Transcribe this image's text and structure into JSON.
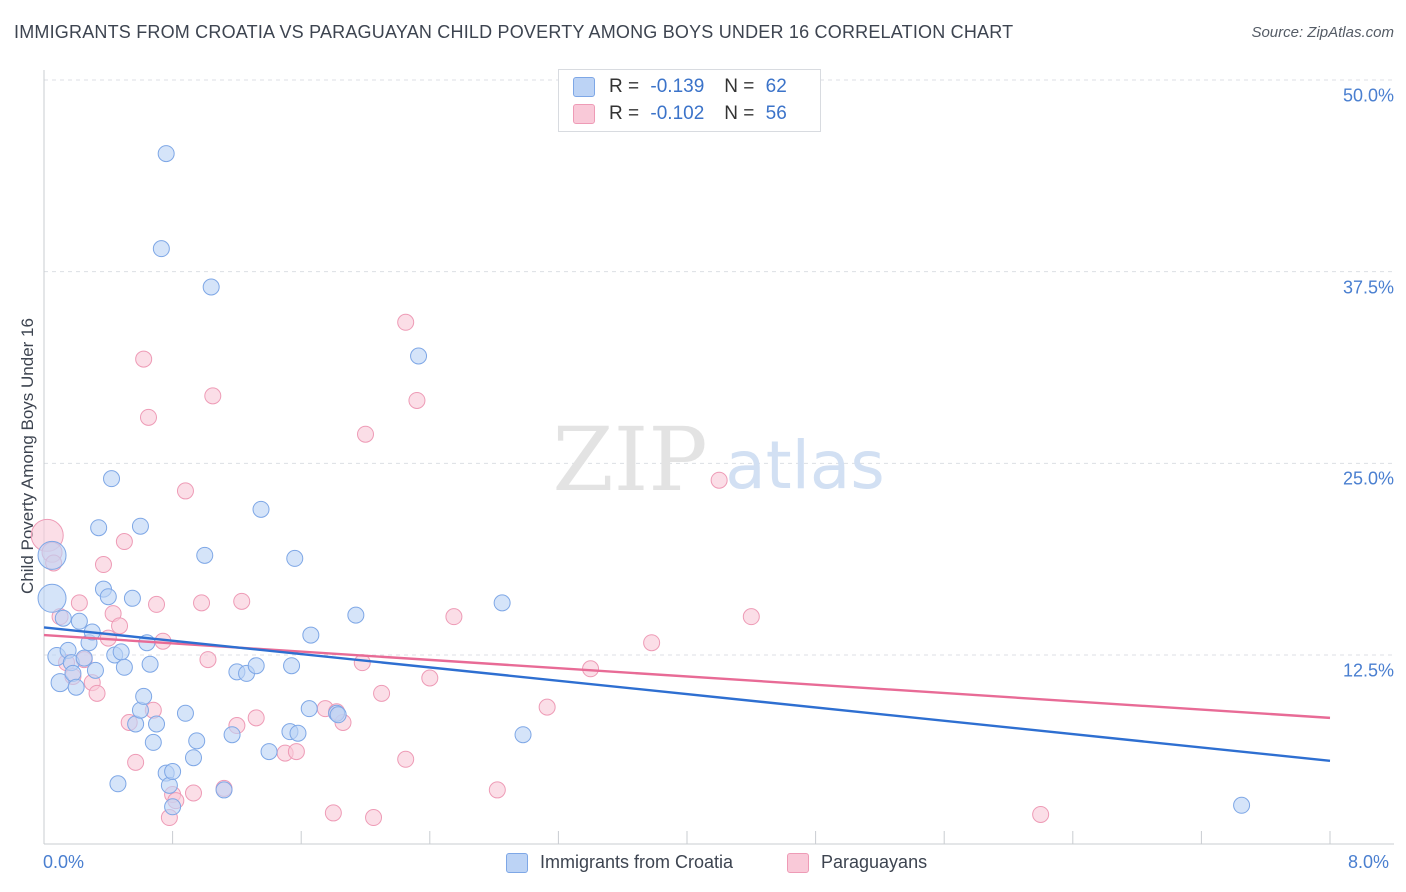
{
  "title": "IMMIGRANTS FROM CROATIA VS PARAGUAYAN CHILD POVERTY AMONG BOYS UNDER 16 CORRELATION CHART",
  "source": "Source: ZipAtlas.com",
  "watermark": {
    "zip": "ZIP",
    "atlas": "atlas"
  },
  "legend": {
    "rows": [
      {
        "r_label": "R =",
        "r_value": "-0.139",
        "n_label": "N =",
        "n_value": "62"
      },
      {
        "r_label": "R =",
        "r_value": "-0.102",
        "n_label": "N =",
        "n_value": "56"
      }
    ]
  },
  "bottom_legend": {
    "series1": "Immigrants from Croatia",
    "series2": "Paraguayans"
  },
  "colors": {
    "blue_fill": "#bcd3f5",
    "blue_stroke": "#7ea7e6",
    "blue_line": "#2e6fd1",
    "pink_fill": "#f9c9d8",
    "pink_stroke": "#ee9bb6",
    "pink_line": "#e86b96",
    "tick_text": "#4a7fd0"
  },
  "chart_data": {
    "type": "scatter",
    "title": "IMMIGRANTS FROM CROATIA VS PARAGUAYAN CHILD POVERTY AMONG BOYS UNDER 16 CORRELATION CHART",
    "xlabel": "",
    "ylabel": "Child Poverty Among Boys Under 16",
    "xlim": [
      0,
      8
    ],
    "ylim": [
      0,
      52
    ],
    "x_tick_labels": {
      "left": "0.0%",
      "right": "8.0%"
    },
    "y_ticks": [
      {
        "value": 12.5,
        "label": "12.5%"
      },
      {
        "value": 25.0,
        "label": "25.0%"
      },
      {
        "value": 37.5,
        "label": "37.5%"
      },
      {
        "value": 50.0,
        "label": "50.0%"
      }
    ],
    "series": [
      {
        "name": "Immigrants from Croatia",
        "color": "blue",
        "trend": {
          "x": [
            0,
            8
          ],
          "y": [
            14.3,
            5.6
          ]
        },
        "points": [
          [
            0.05,
            16.2,
            14
          ],
          [
            0.05,
            19.0,
            14
          ],
          [
            0.08,
            12.4,
            9
          ],
          [
            0.1,
            10.7,
            9
          ],
          [
            0.12,
            14.9,
            8
          ],
          [
            0.15,
            12.8,
            8
          ],
          [
            0.17,
            12.0,
            8
          ],
          [
            0.18,
            11.3,
            8
          ],
          [
            0.2,
            10.4,
            8
          ],
          [
            0.22,
            14.7,
            8
          ],
          [
            0.25,
            12.3,
            8
          ],
          [
            0.28,
            13.3,
            8
          ],
          [
            0.3,
            14.0,
            8
          ],
          [
            0.32,
            11.5,
            8
          ],
          [
            0.34,
            20.8,
            8
          ],
          [
            0.37,
            16.8,
            8
          ],
          [
            0.4,
            16.3,
            8
          ],
          [
            0.42,
            24.0,
            8
          ],
          [
            0.44,
            12.5,
            8
          ],
          [
            0.46,
            4.1,
            8
          ],
          [
            0.48,
            12.7,
            8
          ],
          [
            0.5,
            11.7,
            8
          ],
          [
            0.55,
            16.2,
            8
          ],
          [
            0.57,
            8.0,
            8
          ],
          [
            0.6,
            8.9,
            8
          ],
          [
            0.6,
            20.9,
            8
          ],
          [
            0.62,
            9.8,
            8
          ],
          [
            0.64,
            13.3,
            8
          ],
          [
            0.66,
            11.9,
            8
          ],
          [
            0.68,
            6.8,
            8
          ],
          [
            0.7,
            8.0,
            8
          ],
          [
            0.73,
            39.0,
            8
          ],
          [
            0.76,
            45.2,
            8
          ],
          [
            0.76,
            4.8,
            8
          ],
          [
            0.78,
            4.0,
            8
          ],
          [
            0.8,
            2.6,
            8
          ],
          [
            0.8,
            4.9,
            8
          ],
          [
            0.88,
            8.7,
            8
          ],
          [
            0.93,
            5.8,
            8
          ],
          [
            0.95,
            6.9,
            8
          ],
          [
            1.0,
            19.0,
            8
          ],
          [
            1.04,
            36.5,
            8
          ],
          [
            1.12,
            3.7,
            8
          ],
          [
            1.17,
            7.3,
            8
          ],
          [
            1.2,
            11.4,
            8
          ],
          [
            1.26,
            11.3,
            8
          ],
          [
            1.32,
            11.8,
            8
          ],
          [
            1.35,
            22.0,
            8
          ],
          [
            1.4,
            6.2,
            8
          ],
          [
            1.53,
            7.5,
            8
          ],
          [
            1.54,
            11.8,
            8
          ],
          [
            1.56,
            18.8,
            8
          ],
          [
            1.58,
            7.4,
            8
          ],
          [
            1.65,
            9.0,
            8
          ],
          [
            1.66,
            13.8,
            8
          ],
          [
            1.82,
            8.7,
            8
          ],
          [
            1.83,
            8.6,
            8
          ],
          [
            1.94,
            15.1,
            8
          ],
          [
            2.33,
            32.0,
            8
          ],
          [
            2.85,
            15.9,
            8
          ],
          [
            2.98,
            7.3,
            8
          ],
          [
            7.45,
            2.7,
            8
          ]
        ]
      },
      {
        "name": "Paraguayans",
        "color": "pink",
        "trend": {
          "x": [
            0,
            8
          ],
          "y": [
            13.8,
            8.4
          ]
        },
        "points": [
          [
            0.02,
            20.3,
            16
          ],
          [
            0.05,
            19.2,
            10
          ],
          [
            0.1,
            15.0,
            8
          ],
          [
            0.14,
            12.0,
            8
          ],
          [
            0.18,
            11.1,
            8
          ],
          [
            0.22,
            15.9,
            8
          ],
          [
            0.25,
            12.2,
            8
          ],
          [
            0.3,
            10.7,
            8
          ],
          [
            0.33,
            10.0,
            8
          ],
          [
            0.37,
            18.4,
            8
          ],
          [
            0.4,
            13.6,
            8
          ],
          [
            0.43,
            15.2,
            8
          ],
          [
            0.47,
            14.4,
            8
          ],
          [
            0.5,
            19.9,
            8
          ],
          [
            0.53,
            8.1,
            8
          ],
          [
            0.57,
            5.5,
            8
          ],
          [
            0.62,
            31.8,
            8
          ],
          [
            0.65,
            28.0,
            8
          ],
          [
            0.68,
            8.9,
            8
          ],
          [
            0.7,
            15.8,
            8
          ],
          [
            0.74,
            13.4,
            8
          ],
          [
            0.78,
            1.9,
            8
          ],
          [
            0.8,
            3.4,
            8
          ],
          [
            0.82,
            3.0,
            8
          ],
          [
            0.88,
            23.2,
            8
          ],
          [
            0.93,
            3.5,
            8
          ],
          [
            0.98,
            15.9,
            8
          ],
          [
            1.02,
            12.2,
            8
          ],
          [
            1.05,
            29.4,
            8
          ],
          [
            1.12,
            3.8,
            8
          ],
          [
            1.2,
            7.9,
            8
          ],
          [
            1.23,
            16.0,
            8
          ],
          [
            1.32,
            8.4,
            8
          ],
          [
            1.5,
            6.1,
            8
          ],
          [
            1.57,
            6.2,
            8
          ],
          [
            1.75,
            9.0,
            8
          ],
          [
            1.8,
            2.2,
            8
          ],
          [
            1.82,
            8.8,
            8
          ],
          [
            1.86,
            8.1,
            8
          ],
          [
            1.98,
            12.0,
            8
          ],
          [
            2.0,
            26.9,
            8
          ],
          [
            2.05,
            1.9,
            8
          ],
          [
            2.1,
            10.0,
            8
          ],
          [
            2.25,
            5.7,
            8
          ],
          [
            2.25,
            34.2,
            8
          ],
          [
            2.32,
            29.1,
            8
          ],
          [
            2.4,
            11.0,
            8
          ],
          [
            2.55,
            15.0,
            8
          ],
          [
            2.82,
            3.7,
            8
          ],
          [
            3.13,
            9.1,
            8
          ],
          [
            3.4,
            11.6,
            8
          ],
          [
            3.78,
            13.3,
            8
          ],
          [
            4.2,
            23.9,
            8
          ],
          [
            4.4,
            15.0,
            8
          ],
          [
            6.2,
            2.1,
            8
          ],
          [
            0.06,
            18.5,
            8
          ]
        ]
      }
    ]
  }
}
